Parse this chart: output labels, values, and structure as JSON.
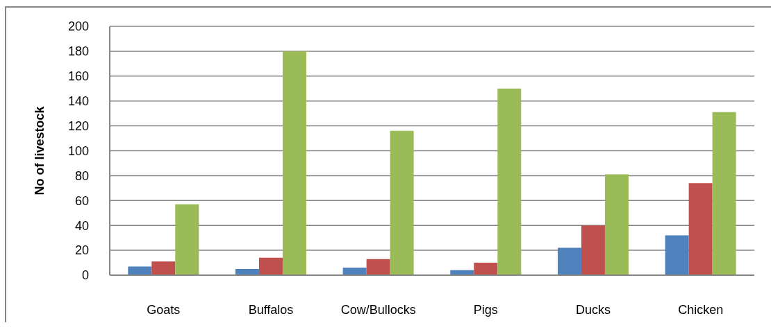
{
  "chart_data": {
    "type": "bar",
    "ylabel": "No of livestock",
    "categories": [
      "Goats",
      "Buffalos",
      "Cow/Bullocks",
      "Pigs",
      "Ducks",
      "Chicken"
    ],
    "series": [
      {
        "color": "#4f81bd",
        "values": [
          7,
          5,
          6,
          4,
          22,
          32
        ]
      },
      {
        "color": "#c0504d",
        "values": [
          11,
          14,
          13,
          10,
          40,
          74
        ]
      },
      {
        "color": "#9bbb59",
        "values": [
          57,
          180,
          116,
          150,
          81,
          131
        ]
      }
    ],
    "ylim": [
      0,
      200
    ],
    "yticks": [
      0,
      20,
      40,
      60,
      80,
      100,
      120,
      140,
      160,
      180,
      200
    ],
    "grid": "y",
    "legend": false
  }
}
